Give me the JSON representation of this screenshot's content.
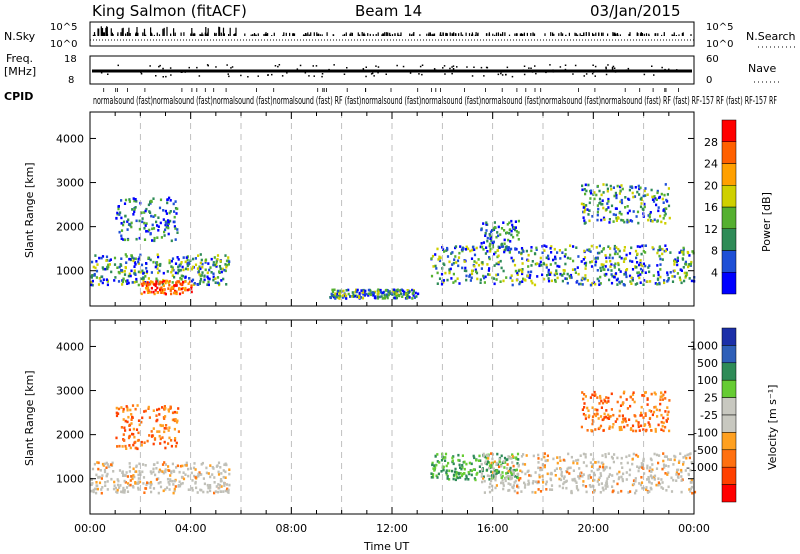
{
  "header": {
    "title": "King Salmon (fitACF)",
    "beam": "Beam 14",
    "date": "03/Jan/2015"
  },
  "strip_panels": {
    "nsky_label": "N.Sky",
    "nsky_ticks": [
      "10^5",
      "10^0"
    ],
    "nsearch_label": "N.Search",
    "nsearch_ticks": [
      "10^5",
      "10^0"
    ],
    "freq_label_line1": "Freq.",
    "freq_label_line2": "[MHz]",
    "freq_ticks": [
      "18",
      "8"
    ],
    "nave_label": "Nave",
    "nave_ticks": [
      "60",
      "0"
    ],
    "cpid_label": "CPID",
    "cpid_text": "normalsound (fast)normalsound (fast)normalsound (fast)normalsound (fast) RF (fast)normalsound (fast)normalsound (fast)normalsound (fast)normalsound (fast)normalsound (fast) RF (fast) RF-157 RF (fast) RF-157 RF"
  },
  "colors": {
    "power_scale": [
      "#0000ff",
      "#1e4fd6",
      "#2e8b57",
      "#55b030",
      "#cfd000",
      "#ffa000",
      "#ff6000",
      "#ff0000"
    ],
    "velocity_scale": [
      "#1b2fa8",
      "#2e5fb8",
      "#2e8b57",
      "#66cc33",
      "#c8c8c0",
      "#c8c8c0",
      "#ffa020",
      "#ff7010",
      "#ff4000",
      "#ff0000"
    ],
    "ground_scatter": "#c0c0b8"
  },
  "chart_data": [
    {
      "type": "heatmap",
      "name_panel": "power",
      "xlabel": "",
      "ylabel": "Slant Range [km]",
      "x_range_hours_ut": [
        0,
        24
      ],
      "ylim": [
        200,
        4600
      ],
      "y_ticks": [
        "1000",
        "2000",
        "3000",
        "4000"
      ],
      "colorbar": {
        "label": "Power [dB]",
        "ticks": [
          "4",
          "8",
          "12",
          "16",
          "20",
          "24",
          "28"
        ],
        "range": [
          0,
          32
        ]
      },
      "scatter_regions": [
        {
          "t_start": 0.0,
          "t_end": 5.5,
          "range_min": 700,
          "range_max": 1400,
          "level": "12-20 dB"
        },
        {
          "t_start": 1.0,
          "t_end": 3.5,
          "range_min": 1700,
          "range_max": 2700,
          "level": "8-16 dB"
        },
        {
          "t_start": 2.0,
          "t_end": 4.0,
          "range_min": 500,
          "range_max": 800,
          "level": "24-30 dB"
        },
        {
          "t_start": 9.5,
          "t_end": 13.0,
          "range_min": 400,
          "range_max": 600,
          "level": "12-20 dB"
        },
        {
          "t_start": 13.5,
          "t_end": 24.0,
          "range_min": 700,
          "range_max": 1600,
          "level": "8-24 dB"
        },
        {
          "t_start": 15.5,
          "t_end": 17.0,
          "range_min": 1500,
          "range_max": 2200,
          "level": "8-16 dB"
        },
        {
          "t_start": 19.5,
          "t_end": 23.0,
          "range_min": 2100,
          "range_max": 3000,
          "level": "12-20 dB"
        }
      ]
    },
    {
      "type": "heatmap",
      "name_panel": "velocity",
      "xlabel": "Time UT",
      "ylabel": "Slant Range [km]",
      "x_range_hours_ut": [
        0,
        24
      ],
      "x_ticks": [
        "00:00",
        "04:00",
        "08:00",
        "12:00",
        "16:00",
        "20:00",
        "00:00"
      ],
      "ylim": [
        200,
        4600
      ],
      "y_ticks": [
        "1000",
        "2000",
        "3000",
        "4000"
      ],
      "colorbar": {
        "label": "Velocity [m s⁻¹]",
        "ticks": [
          "1000",
          "500",
          "100",
          "25",
          "-25",
          "-100",
          "-500",
          "-1000"
        ]
      },
      "scatter_regions": [
        {
          "t_start": 0.0,
          "t_end": 5.5,
          "range_min": 700,
          "range_max": 1400,
          "kind": "ground scatter / near zero"
        },
        {
          "t_start": 1.0,
          "t_end": 3.5,
          "range_min": 1700,
          "range_max": 2700,
          "kind": "negative (-100 to -500)"
        },
        {
          "t_start": 13.5,
          "t_end": 17.0,
          "range_min": 1000,
          "range_max": 1600,
          "kind": "positive (100 to 500)"
        },
        {
          "t_start": 15.5,
          "t_end": 24.0,
          "range_min": 700,
          "range_max": 1600,
          "kind": "ground scatter / near zero"
        },
        {
          "t_start": 19.5,
          "t_end": 23.0,
          "range_min": 2100,
          "range_max": 3000,
          "kind": "negative (-100 to -500)"
        }
      ]
    }
  ]
}
